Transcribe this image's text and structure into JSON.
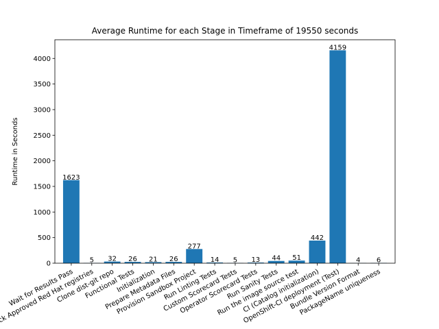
{
  "chart_data": {
    "type": "bar",
    "title": "Average Runtime for each Stage in Timeframe of 19550 seconds",
    "xlabel": "",
    "ylabel": "Runtime in Seconds",
    "ylim": [
      0,
      4365
    ],
    "yticks": [
      0,
      500,
      1000,
      1500,
      2000,
      2500,
      3000,
      3500,
      4000
    ],
    "grid": false,
    "color": "#1f77b4",
    "categories": [
      "Wait for Results Pass",
      "Check Approved Red Hat registries",
      "Clone dist-git repo",
      "Functional Tests",
      "Initialization",
      "Prepare Metadata Files",
      "Provision Sandbox Project",
      "Run Linting Tests",
      "Custom Scorecard Tests",
      "Operator Scorecard Tests",
      "Run Sanity Tests",
      "Run the image source test",
      "CI (Catalog initialization)",
      "OpenShift-CI deployment (Test)",
      "Bundle Version Format",
      "PackageName uniqueness"
    ],
    "values": [
      1623,
      5,
      32,
      26,
      21,
      26,
      277,
      14,
      5,
      13,
      44,
      51,
      442,
      4159,
      4,
      6
    ]
  }
}
